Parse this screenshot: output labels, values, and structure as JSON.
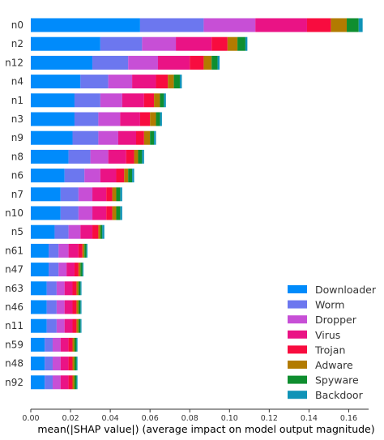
{
  "chart_data": {
    "type": "bar",
    "orientation": "horizontal",
    "stacked": true,
    "title": "",
    "xlabel": "mean(|SHAP value|) (average impact on model output magnitude)",
    "ylabel": "",
    "xlim": [
      0,
      0.17
    ],
    "xticks": [
      "0.00",
      "0.02",
      "0.04",
      "0.06",
      "0.08",
      "0.10",
      "0.12",
      "0.14",
      "0.16"
    ],
    "grid": false,
    "legend_position": "bottom-right",
    "categories": [
      "n0",
      "n2",
      "n12",
      "n4",
      "n1",
      "n3",
      "n9",
      "n8",
      "n6",
      "n7",
      "n10",
      "n5",
      "n61",
      "n47",
      "n63",
      "n46",
      "n11",
      "n59",
      "n48",
      "n92"
    ],
    "series": [
      {
        "name": "Downloader",
        "color": "#008bfb",
        "values": [
          0.055,
          0.035,
          0.031,
          0.025,
          0.022,
          0.022,
          0.021,
          0.019,
          0.017,
          0.015,
          0.015,
          0.012,
          0.009,
          0.009,
          0.008,
          0.008,
          0.008,
          0.007,
          0.007,
          0.007
        ]
      },
      {
        "name": "Worm",
        "color": "#6c77ef",
        "values": [
          0.032,
          0.021,
          0.018,
          0.014,
          0.013,
          0.012,
          0.013,
          0.011,
          0.01,
          0.009,
          0.009,
          0.007,
          0.005,
          0.005,
          0.005,
          0.005,
          0.005,
          0.004,
          0.004,
          0.004
        ]
      },
      {
        "name": "Dropper",
        "color": "#c74fd6",
        "values": [
          0.026,
          0.017,
          0.015,
          0.012,
          0.011,
          0.011,
          0.01,
          0.009,
          0.008,
          0.007,
          0.007,
          0.006,
          0.005,
          0.004,
          0.004,
          0.004,
          0.004,
          0.004,
          0.004,
          0.004
        ]
      },
      {
        "name": "Virus",
        "color": "#ea1385",
        "values": [
          0.026,
          0.018,
          0.016,
          0.012,
          0.011,
          0.01,
          0.009,
          0.009,
          0.008,
          0.007,
          0.007,
          0.006,
          0.005,
          0.004,
          0.004,
          0.004,
          0.004,
          0.004,
          0.004,
          0.004
        ]
      },
      {
        "name": "Trojan",
        "color": "#f80c3f",
        "values": [
          0.012,
          0.008,
          0.007,
          0.006,
          0.005,
          0.005,
          0.004,
          0.004,
          0.004,
          0.003,
          0.003,
          0.003,
          0.002,
          0.002,
          0.002,
          0.002,
          0.002,
          0.002,
          0.002,
          0.002
        ]
      },
      {
        "name": "Adware",
        "color": "#b27b00",
        "values": [
          0.008,
          0.005,
          0.004,
          0.003,
          0.003,
          0.003,
          0.003,
          0.002,
          0.002,
          0.002,
          0.002,
          0.001,
          0.001,
          0.001,
          0.001,
          0.001,
          0.001,
          0.001,
          0.001,
          0.001
        ]
      },
      {
        "name": "Spyware",
        "color": "#0f8e2f",
        "values": [
          0.006,
          0.004,
          0.003,
          0.003,
          0.002,
          0.002,
          0.002,
          0.002,
          0.002,
          0.002,
          0.002,
          0.001,
          0.001,
          0.001,
          0.001,
          0.001,
          0.001,
          0.001,
          0.001,
          0.001
        ]
      },
      {
        "name": "Backdoor",
        "color": "#0f93b7",
        "values": [
          0.002,
          0.001,
          0.001,
          0.001,
          0.001,
          0.001,
          0.001,
          0.001,
          0.001,
          0.001,
          0.001,
          0.001,
          0.0005,
          0.0005,
          0.0005,
          0.0005,
          0.0005,
          0.0005,
          0.0005,
          0.0005
        ]
      }
    ]
  }
}
